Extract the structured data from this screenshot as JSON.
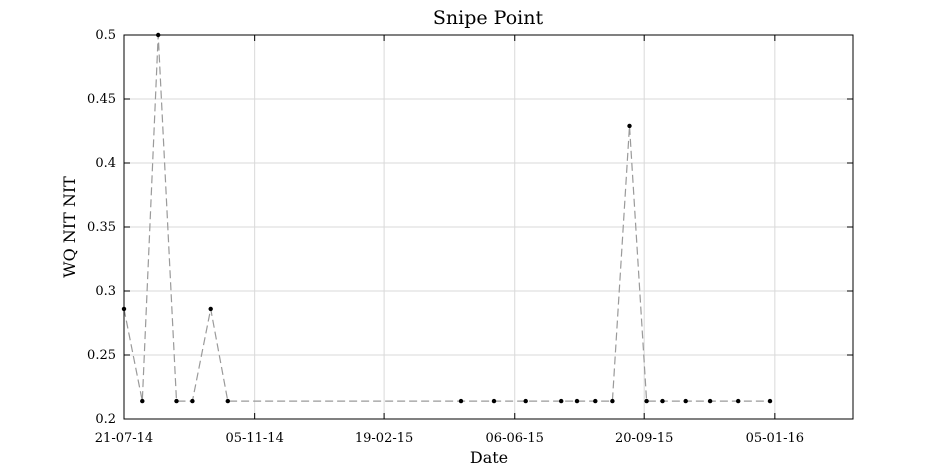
{
  "chart_data": {
    "type": "line",
    "title": "Snipe Point",
    "xlabel": "Date",
    "ylabel": "WQ NIT NIT",
    "xlim": [
      "2014-07-21",
      "2016-03-09"
    ],
    "ylim": [
      0.2,
      0.5
    ],
    "x_ticks": [
      "21-07-14",
      "05-11-14",
      "19-02-15",
      "06-06-15",
      "20-09-15",
      "05-01-16"
    ],
    "x_tick_dates": [
      "2014-07-21",
      "2014-11-05",
      "2015-02-19",
      "2015-06-06",
      "2015-09-20",
      "2016-01-05"
    ],
    "y_ticks": [
      "0.2",
      "0.25",
      "0.3",
      "0.35",
      "0.4",
      "0.45",
      "0.5"
    ],
    "y_tick_values": [
      0.2,
      0.25,
      0.3,
      0.35,
      0.4,
      0.45,
      0.5
    ],
    "grid": true,
    "series": [
      {
        "line_color": "#9a9a9a",
        "marker_color": "#000000",
        "line_style": "dashed",
        "x": [
          "2014-07-21",
          "2014-08-05",
          "2014-08-18",
          "2014-09-02",
          "2014-09-15",
          "2014-09-30",
          "2014-10-14",
          "2015-04-23",
          "2015-05-20",
          "2015-06-15",
          "2015-07-14",
          "2015-07-27",
          "2015-08-11",
          "2015-08-25",
          "2015-09-08",
          "2015-09-22",
          "2015-10-05",
          "2015-10-24",
          "2015-11-13",
          "2015-12-06",
          "2016-01-01"
        ],
        "y": [
          0.286,
          0.214,
          0.5,
          0.214,
          0.214,
          0.286,
          0.214,
          0.214,
          0.214,
          0.214,
          0.214,
          0.214,
          0.214,
          0.214,
          0.429,
          0.214,
          0.214,
          0.214,
          0.214,
          0.214,
          0.214
        ]
      }
    ]
  }
}
